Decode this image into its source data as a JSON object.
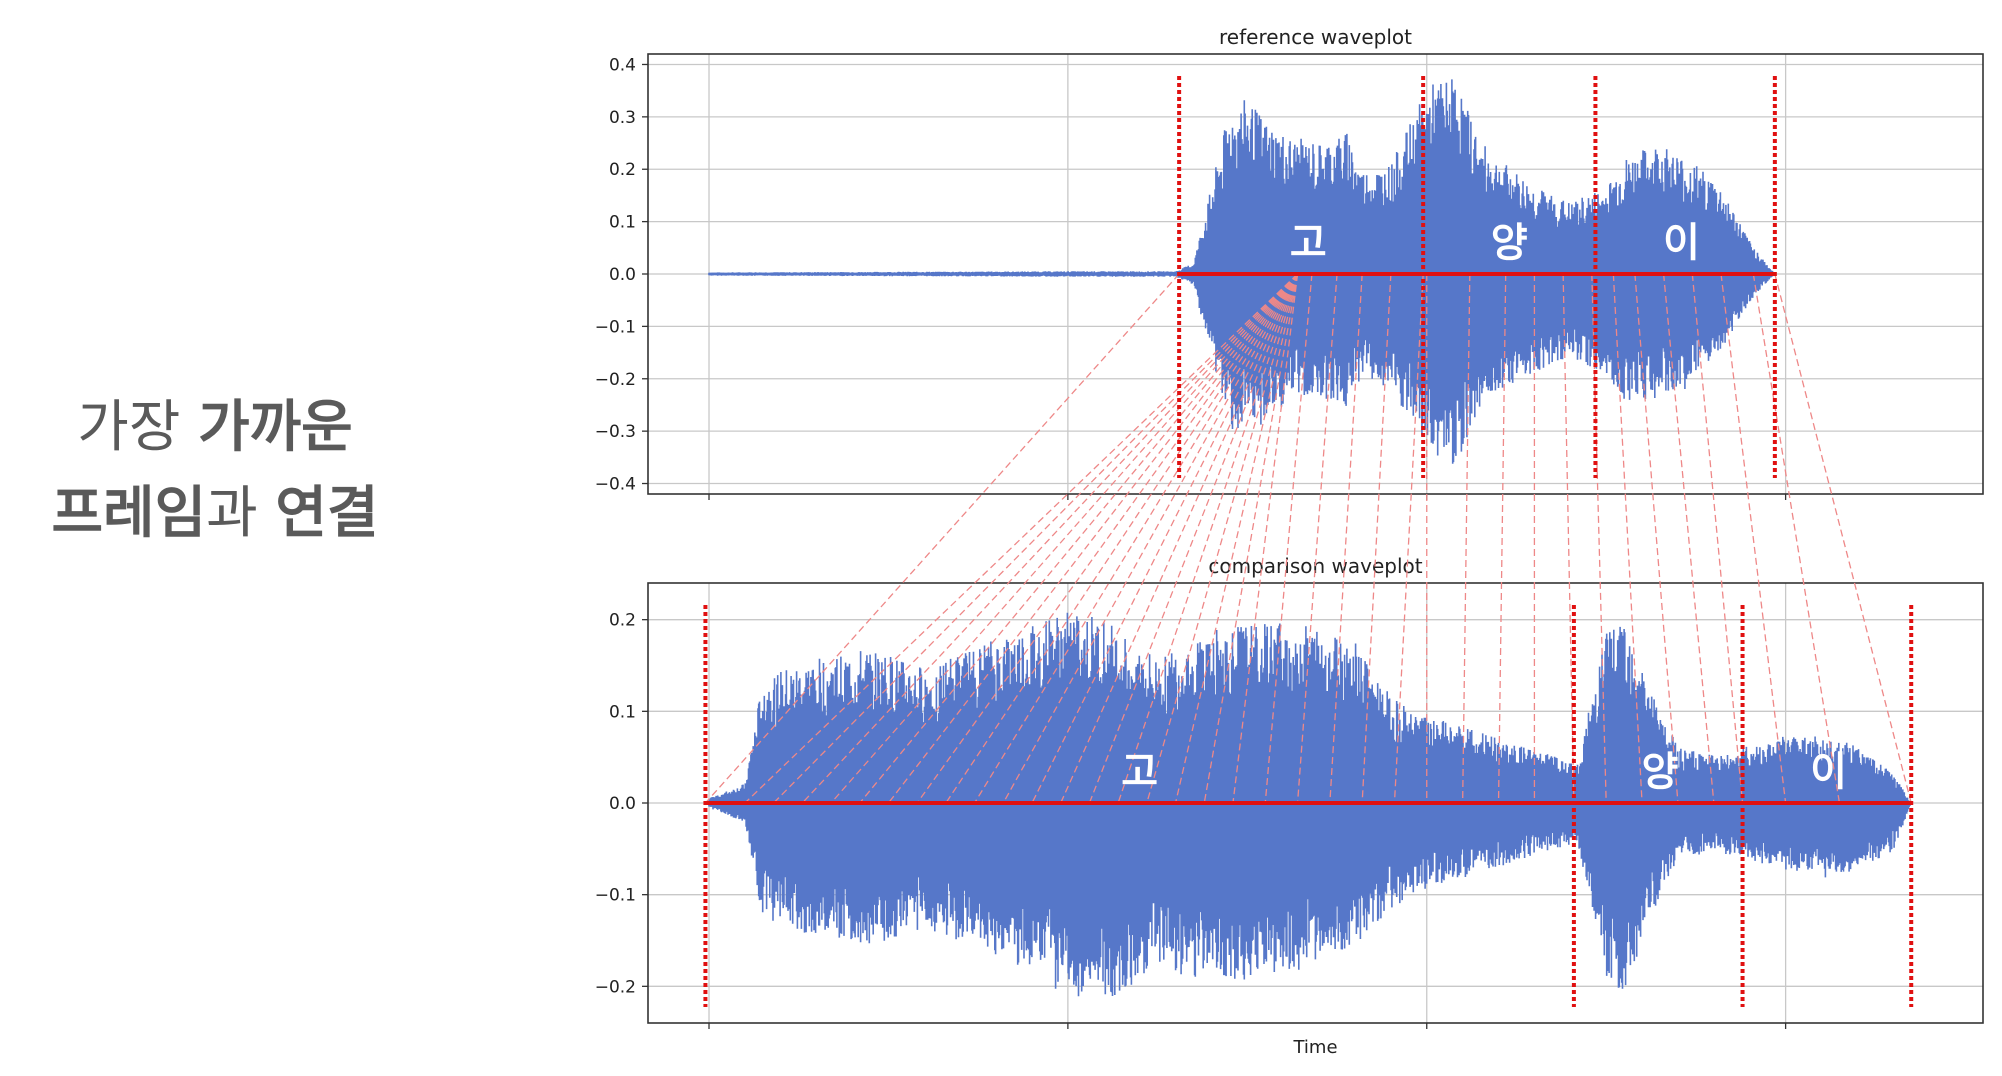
{
  "caption": {
    "line1_light": "가장 ",
    "line1_bold": "가까운",
    "line2_bold": "프레임",
    "line2_light": "과 ",
    "line2_bold2": "연결"
  },
  "colors": {
    "wave": "#5677c9",
    "segment": "#e01010",
    "link": "#ee8888",
    "grid": "#c8c8c8",
    "axis": "#333333"
  },
  "chart_data": [
    {
      "type": "area",
      "title": "reference waveplot",
      "xlabel": "",
      "ylabel": "",
      "ylim": [
        -0.42,
        0.42
      ],
      "yticks": [
        0.4,
        0.3,
        0.2,
        0.1,
        0.0,
        -0.1,
        -0.2,
        -0.3,
        -0.4
      ],
      "ytick_labels": [
        "0.4",
        "0.3",
        "0.2",
        "0.1",
        "0.0",
        "−0.1",
        "−0.2",
        "−0.3",
        "−0.4"
      ],
      "xlim": [
        -0.17,
        3.55
      ],
      "xgrid": [
        0,
        1,
        2,
        3
      ],
      "grid": true,
      "envelope": {
        "x": [
          0.0,
          1.0,
          1.3,
          1.35,
          1.45,
          1.5,
          1.55,
          1.62,
          1.7,
          1.78,
          1.82,
          1.9,
          1.98,
          2.02,
          2.08,
          2.15,
          2.2,
          2.3,
          2.4,
          2.5,
          2.55,
          2.65,
          2.75,
          2.82,
          2.9,
          2.97
        ],
        "upper": [
          0.003,
          0.005,
          0.005,
          0.02,
          0.3,
          0.32,
          0.28,
          0.25,
          0.24,
          0.26,
          0.19,
          0.2,
          0.31,
          0.35,
          0.36,
          0.24,
          0.21,
          0.16,
          0.13,
          0.16,
          0.21,
          0.24,
          0.2,
          0.16,
          0.06,
          0.0
        ],
        "lower": [
          -0.003,
          -0.005,
          -0.005,
          -0.02,
          -0.28,
          -0.3,
          -0.27,
          -0.23,
          -0.22,
          -0.25,
          -0.18,
          -0.22,
          -0.3,
          -0.33,
          -0.35,
          -0.24,
          -0.21,
          -0.18,
          -0.15,
          -0.19,
          -0.23,
          -0.23,
          -0.2,
          -0.14,
          -0.05,
          0.0
        ]
      },
      "segment_bounds": [
        1.31,
        1.99,
        2.47,
        2.97
      ],
      "syllables": [
        {
          "text": "고",
          "x": 1.67
        },
        {
          "text": "양",
          "x": 2.23
        },
        {
          "text": "이",
          "x": 2.71
        }
      ]
    },
    {
      "type": "area",
      "title": "comparison waveplot",
      "xlabel": "Time",
      "ylabel": "",
      "ylim": [
        -0.24,
        0.24
      ],
      "yticks": [
        0.2,
        0.1,
        0.0,
        -0.1,
        -0.2
      ],
      "ytick_labels": [
        "0.2",
        "0.1",
        "0.0",
        "−0.1",
        "−0.2"
      ],
      "xlim": [
        -0.17,
        3.55
      ],
      "xgrid": [
        0,
        1,
        2,
        3
      ],
      "grid": true,
      "envelope": {
        "x": [
          0.0,
          0.1,
          0.15,
          0.3,
          0.45,
          0.6,
          0.8,
          1.0,
          1.1,
          1.25,
          1.4,
          1.6,
          1.8,
          1.9,
          2.0,
          2.1,
          2.25,
          2.35,
          2.42,
          2.5,
          2.55,
          2.62,
          2.7,
          2.8,
          2.9,
          3.0,
          3.1,
          3.2,
          3.3,
          3.35
        ],
        "upper": [
          0.005,
          0.02,
          0.13,
          0.15,
          0.16,
          0.14,
          0.17,
          0.2,
          0.19,
          0.15,
          0.18,
          0.19,
          0.17,
          0.11,
          0.09,
          0.08,
          0.06,
          0.05,
          0.04,
          0.18,
          0.2,
          0.12,
          0.06,
          0.05,
          0.06,
          0.07,
          0.07,
          0.06,
          0.03,
          0.0
        ],
        "lower": [
          -0.005,
          -0.02,
          -0.12,
          -0.14,
          -0.15,
          -0.13,
          -0.16,
          -0.2,
          -0.21,
          -0.17,
          -0.19,
          -0.18,
          -0.15,
          -0.11,
          -0.09,
          -0.08,
          -0.06,
          -0.05,
          -0.04,
          -0.18,
          -0.2,
          -0.12,
          -0.06,
          -0.05,
          -0.06,
          -0.07,
          -0.08,
          -0.07,
          -0.05,
          0.0
        ]
      },
      "segment_bounds": [
        -0.01,
        2.41,
        2.88,
        3.35
      ],
      "syllables": [
        {
          "text": "고",
          "x": 1.2
        },
        {
          "text": "양",
          "x": 2.65
        },
        {
          "text": "이",
          "x": 3.12
        }
      ]
    }
  ],
  "alignment_links": {
    "reference_x": [
      1.31,
      1.64,
      1.64,
      1.64,
      1.64,
      1.64,
      1.64,
      1.64,
      1.64,
      1.64,
      1.64,
      1.64,
      1.64,
      1.64,
      1.64,
      1.64,
      1.64,
      1.64,
      1.64,
      1.68,
      1.75,
      1.82,
      1.9,
      1.99,
      2.0,
      2.12,
      2.22,
      2.3,
      2.38,
      2.46,
      2.52,
      2.58,
      2.66,
      2.74,
      2.82,
      2.91,
      2.97
    ],
    "comparison_x": [
      -0.01,
      0.1,
      0.18,
      0.26,
      0.34,
      0.42,
      0.5,
      0.58,
      0.66,
      0.74,
      0.82,
      0.9,
      0.98,
      1.06,
      1.14,
      1.22,
      1.3,
      1.38,
      1.46,
      1.55,
      1.64,
      1.73,
      1.82,
      1.91,
      2.0,
      2.1,
      2.2,
      2.3,
      2.41,
      2.5,
      2.6,
      2.7,
      2.8,
      2.88,
      3.0,
      3.15,
      3.35
    ]
  }
}
